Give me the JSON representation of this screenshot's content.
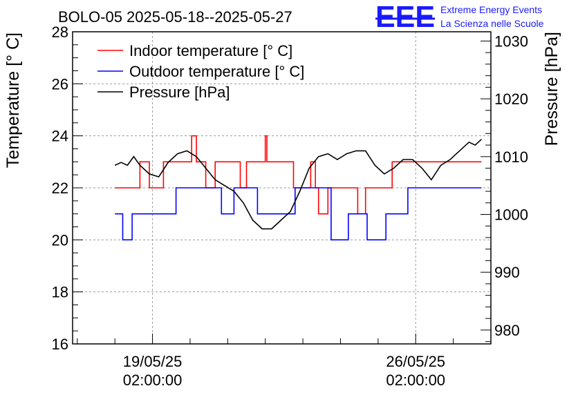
{
  "branding": {
    "logo_text": "EEE",
    "line1": "Extreme Energy Events",
    "line2": "La Scienza nelle Scuole",
    "color": "#1a1aff"
  },
  "chart_data": {
    "type": "line",
    "title": "BOLO-05 2025-05-18--2025-05-27",
    "ylabel": "Temperature [° C]",
    "y2label": "Pressure [hPa]",
    "xlabel": "",
    "ylim": [
      16,
      28
    ],
    "y2lim": [
      977.6,
      1031.6
    ],
    "xlim": [
      "2025-05-16 23:00",
      "2025-05-28 02:00"
    ],
    "grid": true,
    "legend_position": "top-left",
    "x_ticks": [
      {
        "at": "2025-05-19 02:00",
        "line1": "19/05/25",
        "line2": "02:00:00"
      },
      {
        "at": "2025-05-26 02:00",
        "line1": "26/05/25",
        "line2": "02:00:00"
      }
    ],
    "y_ticks": [
      16,
      18,
      20,
      22,
      24,
      26,
      28
    ],
    "y2_ticks": [
      980,
      990,
      1000,
      1010,
      1020,
      1030
    ],
    "series": [
      {
        "name": "Indoor temperature [° C]",
        "color": "#ff0000",
        "axis": "left",
        "step": true,
        "points": [
          [
            "2025-05-18 02:00",
            22
          ],
          [
            "2025-05-18 18:00",
            23
          ],
          [
            "2025-05-19 00:00",
            22
          ],
          [
            "2025-05-19 09:00",
            23
          ],
          [
            "2025-05-20 03:00",
            24
          ],
          [
            "2025-05-20 06:00",
            23
          ],
          [
            "2025-05-20 12:00",
            22
          ],
          [
            "2025-05-20 18:00",
            23
          ],
          [
            "2025-05-21 10:00",
            22
          ],
          [
            "2025-05-21 14:00",
            23
          ],
          [
            "2025-05-22 02:00",
            24
          ],
          [
            "2025-05-22 03:00",
            23
          ],
          [
            "2025-05-22 20:00",
            22
          ],
          [
            "2025-05-23 07:00",
            23
          ],
          [
            "2025-05-23 10:00",
            22
          ],
          [
            "2025-05-23 12:00",
            21
          ],
          [
            "2025-05-23 18:00",
            22
          ],
          [
            "2025-05-24 13:00",
            21
          ],
          [
            "2025-05-24 18:00",
            22
          ],
          [
            "2025-05-25 11:00",
            23
          ],
          [
            "2025-05-27 20:00",
            23
          ]
        ]
      },
      {
        "name": "Outdoor temperature [° C]",
        "color": "#0000ff",
        "axis": "left",
        "step": true,
        "points": [
          [
            "2025-05-18 02:00",
            21
          ],
          [
            "2025-05-18 07:00",
            20
          ],
          [
            "2025-05-18 13:00",
            21
          ],
          [
            "2025-05-19 17:00",
            22
          ],
          [
            "2025-05-20 22:00",
            21
          ],
          [
            "2025-05-21 06:00",
            22
          ],
          [
            "2025-05-21 21:00",
            21
          ],
          [
            "2025-05-22 21:00",
            22
          ],
          [
            "2025-05-23 20:00",
            20
          ],
          [
            "2025-05-24 07:00",
            21
          ],
          [
            "2025-05-24 19:00",
            20
          ],
          [
            "2025-05-25 07:00",
            21
          ],
          [
            "2025-05-25 21:00",
            22
          ],
          [
            "2025-05-27 20:00",
            22
          ]
        ]
      },
      {
        "name": "Pressure [hPa]",
        "color": "#000000",
        "axis": "right",
        "step": false,
        "points": [
          [
            "2025-05-18 02:00",
            1008.5
          ],
          [
            "2025-05-18 06:00",
            1009
          ],
          [
            "2025-05-18 10:00",
            1008.5
          ],
          [
            "2025-05-18 14:00",
            1010
          ],
          [
            "2025-05-18 18:00",
            1008.5
          ],
          [
            "2025-05-19 00:00",
            1007
          ],
          [
            "2025-05-19 06:00",
            1006.5
          ],
          [
            "2025-05-19 12:00",
            1009
          ],
          [
            "2025-05-19 18:00",
            1010.5
          ],
          [
            "2025-05-20 00:00",
            1011
          ],
          [
            "2025-05-20 06:00",
            1010
          ],
          [
            "2025-05-20 12:00",
            1008
          ],
          [
            "2025-05-20 18:00",
            1006
          ],
          [
            "2025-05-21 00:00",
            1005
          ],
          [
            "2025-05-21 06:00",
            1004
          ],
          [
            "2025-05-21 12:00",
            1002
          ],
          [
            "2025-05-21 18:00",
            999
          ],
          [
            "2025-05-22 00:00",
            997.5
          ],
          [
            "2025-05-22 06:00",
            997.5
          ],
          [
            "2025-05-22 12:00",
            999
          ],
          [
            "2025-05-22 18:00",
            1000.5
          ],
          [
            "2025-05-23 00:00",
            1004
          ],
          [
            "2025-05-23 06:00",
            1008
          ],
          [
            "2025-05-23 12:00",
            1010
          ],
          [
            "2025-05-23 18:00",
            1010.5
          ],
          [
            "2025-05-24 00:00",
            1009.5
          ],
          [
            "2025-05-24 06:00",
            1010.5
          ],
          [
            "2025-05-24 12:00",
            1011
          ],
          [
            "2025-05-24 18:00",
            1011
          ],
          [
            "2025-05-25 00:00",
            1008.5
          ],
          [
            "2025-05-25 06:00",
            1007
          ],
          [
            "2025-05-25 12:00",
            1008
          ],
          [
            "2025-05-25 18:00",
            1009.5
          ],
          [
            "2025-05-26 00:00",
            1009.5
          ],
          [
            "2025-05-26 06:00",
            1008
          ],
          [
            "2025-05-26 12:00",
            1006
          ],
          [
            "2025-05-26 18:00",
            1008.5
          ],
          [
            "2025-05-27 00:00",
            1009.5
          ],
          [
            "2025-05-27 06:00",
            1011
          ],
          [
            "2025-05-27 12:00",
            1012.5
          ],
          [
            "2025-05-27 16:00",
            1012
          ],
          [
            "2025-05-27 20:00",
            1013
          ]
        ]
      }
    ]
  }
}
